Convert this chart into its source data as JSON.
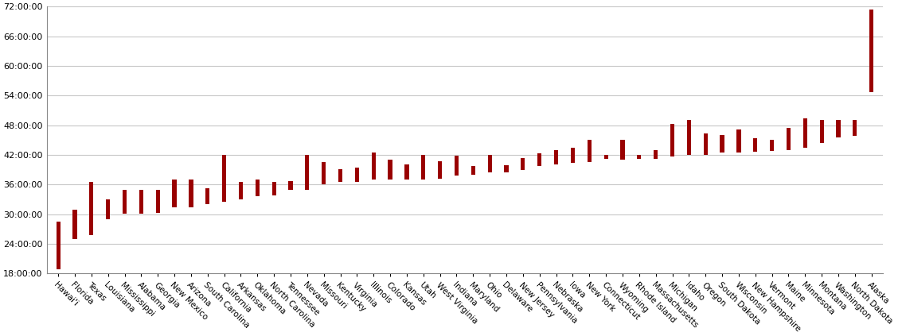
{
  "states": [
    "Hawai'i",
    "Florida",
    "Texas",
    "Louisiana",
    "Mississippi",
    "Alabama",
    "Georgia",
    "New Mexico",
    "Arizona",
    "South Carolina",
    "California",
    "Arkansas",
    "Oklahoma",
    "North Carolina",
    "Tennessee",
    "Nevada",
    "Missouri",
    "Kentucky",
    "Virginia",
    "Illinois",
    "Colorado",
    "Kansas",
    "Utah",
    "West Virginia",
    "Indiana",
    "Maryland",
    "Ohio",
    "Delaware",
    "New Jersey",
    "Pennsylvania",
    "Nebraska",
    "Iowa",
    "New York",
    "Connecticut",
    "Wyoming",
    "Rhode Island",
    "Massachusetts",
    "Michigan",
    "Idaho",
    "Oregon",
    "South Dakota",
    "Wisconsin",
    "New Hampshire",
    "Vermont",
    "Maine",
    "Minnesota",
    "Montana",
    "Washington",
    "North Dakota",
    "Alaska"
  ],
  "lat_min": [
    18.91,
    24.95,
    25.84,
    28.92,
    30.17,
    30.14,
    30.36,
    31.33,
    31.33,
    32.03,
    32.53,
    33.0,
    33.62,
    33.84,
    34.98,
    35.0,
    35.99,
    36.5,
    36.54,
    36.97,
    36.99,
    36.99,
    36.99,
    37.2,
    37.77,
    37.91,
    38.4,
    38.45,
    38.93,
    39.72,
    40.0,
    40.36,
    40.5,
    41.18,
    40.99,
    41.15,
    41.19,
    41.7,
    41.99,
    41.99,
    42.48,
    42.49,
    42.7,
    42.73,
    42.98,
    43.5,
    44.36,
    45.54,
    45.93,
    54.68
  ],
  "lat_max": [
    28.45,
    31.0,
    36.5,
    33.02,
    34.99,
    35.01,
    35.01,
    37.0,
    37.0,
    35.22,
    42.01,
    36.5,
    37.0,
    36.59,
    36.68,
    42.0,
    40.61,
    39.15,
    39.46,
    42.51,
    41.0,
    40.0,
    42.0,
    40.64,
    41.77,
    39.72,
    41.98,
    39.84,
    41.36,
    42.27,
    43.0,
    43.51,
    45.02,
    42.05,
    45.01,
    42.01,
    42.89,
    48.23,
    49.0,
    46.26,
    45.95,
    47.08,
    45.31,
    45.02,
    47.46,
    49.38,
    49.0,
    49.0,
    49.0,
    71.44
  ],
  "bar_color": "#990000",
  "bg_color": "#FFFFFF",
  "grid_color": "#C8C8C8",
  "ylim_min": 18,
  "ylim_max": 72,
  "ytick_step": 6,
  "bar_width": 0.25,
  "xlabel_fontsize": 7.5,
  "ylabel_fontsize": 8
}
